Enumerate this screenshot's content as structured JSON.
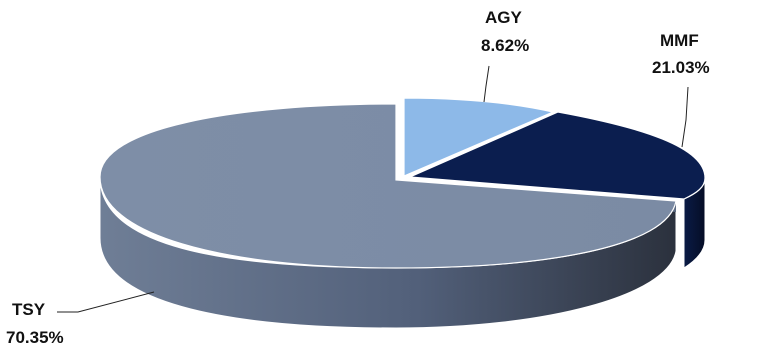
{
  "chart_data": {
    "type": "pie",
    "style": "3d-exploded",
    "slices": [
      {
        "label": "AGY",
        "value": 8.62,
        "display": "8.62%",
        "color": "#8DB9E8"
      },
      {
        "label": "MMF",
        "value": 21.03,
        "display": "21.03%",
        "color": "#0B1E4F"
      },
      {
        "label": "TSY",
        "value": 70.35,
        "display": "70.35%",
        "color": "#7D8DA6"
      }
    ],
    "title": "",
    "legend": "none"
  }
}
